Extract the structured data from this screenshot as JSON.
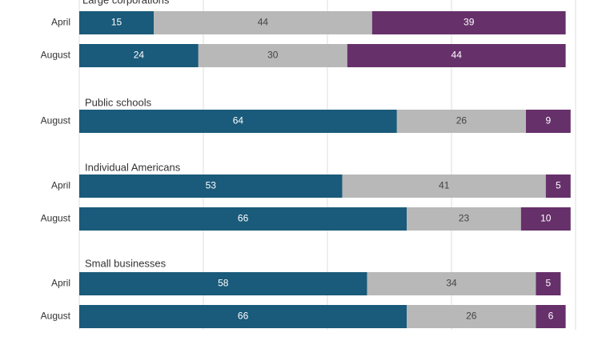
{
  "chart_data": {
    "type": "bar",
    "orientation": "horizontal",
    "stacked": true,
    "xlim": [
      0,
      100
    ],
    "grid": true,
    "colors": [
      "#1a5a7a",
      "#b8b8b8",
      "#66306a"
    ],
    "groups": [
      {
        "title": "Large corporations",
        "rows": [
          {
            "label": "April",
            "values": [
              15,
              44,
              39
            ]
          },
          {
            "label": "August",
            "values": [
              24,
              30,
              44
            ]
          }
        ]
      },
      {
        "title": "Public schools",
        "rows": [
          {
            "label": "August",
            "values": [
              64,
              26,
              9
            ]
          }
        ]
      },
      {
        "title": "Individual Americans",
        "rows": [
          {
            "label": "April",
            "values": [
              53,
              41,
              5
            ]
          },
          {
            "label": "August",
            "values": [
              66,
              23,
              10
            ]
          }
        ]
      },
      {
        "title": "Small businesses",
        "rows": [
          {
            "label": "April",
            "values": [
              58,
              34,
              5
            ]
          },
          {
            "label": "August",
            "values": [
              66,
              26,
              6
            ]
          }
        ]
      }
    ]
  }
}
